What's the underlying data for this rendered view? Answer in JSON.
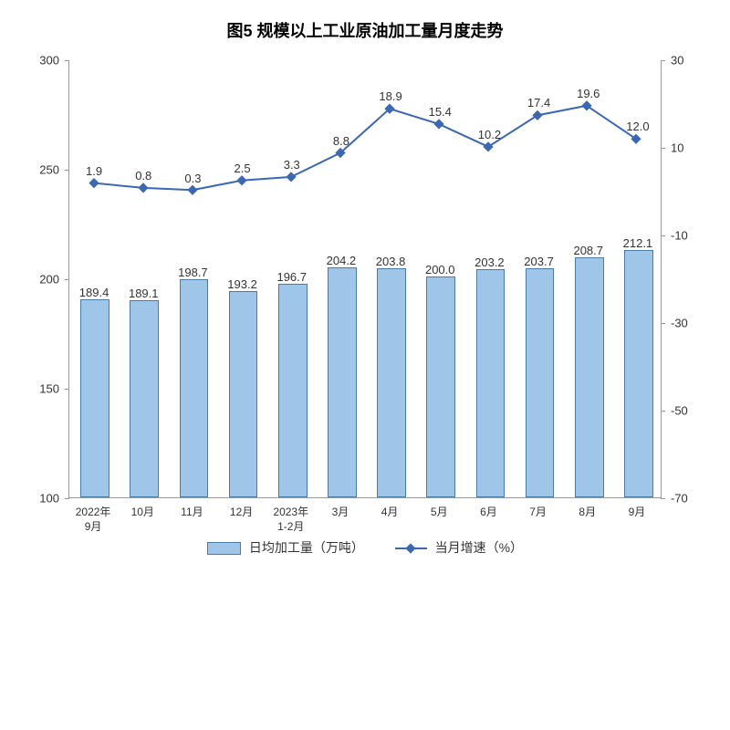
{
  "chart": {
    "type": "bar+line",
    "title": "图5 规模以上工业原油加工量月度走势",
    "title_fontsize": 18,
    "background_color": "#ffffff",
    "categories": [
      "2022年\n9月",
      "10月",
      "11月",
      "12月",
      "2023年\n1-2月",
      "3月",
      "4月",
      "5月",
      "6月",
      "7月",
      "8月",
      "9月"
    ],
    "bar_series": {
      "name": "日均加工量（万吨）",
      "values": [
        189.4,
        189.1,
        198.7,
        193.2,
        196.7,
        204.2,
        203.8,
        200.0,
        203.2,
        203.7,
        208.7,
        212.1
      ],
      "color": "#9fc5e8",
      "border_color": "#4a7ba6",
      "bar_width": 0.55
    },
    "line_series": {
      "name": "当月增速（%）",
      "values": [
        1.9,
        0.8,
        0.3,
        2.5,
        3.3,
        8.8,
        18.9,
        15.4,
        10.2,
        17.4,
        19.6,
        12.0
      ],
      "color": "#3b68b0",
      "marker": "diamond",
      "marker_size": 8,
      "line_width": 2
    },
    "y_left": {
      "min": 100,
      "max": 300,
      "ticks": [
        100,
        150,
        200,
        250,
        300
      ],
      "label_fontsize": 13
    },
    "y_right": {
      "min": -70,
      "max": 30,
      "ticks": [
        -70,
        -50,
        -30,
        -10,
        10,
        30
      ],
      "label_fontsize": 13
    },
    "x_label_fontsize": 12,
    "axis_color": "#999999",
    "text_color": "#333333"
  }
}
